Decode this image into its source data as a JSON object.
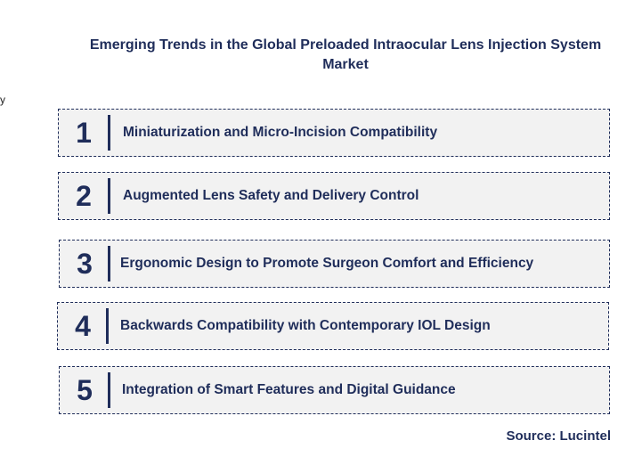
{
  "title": "Emerging Trends in the Global Preloaded Intraocular Lens Injection System Market",
  "stray_char": "y",
  "trends": [
    {
      "number": "1",
      "label": "Miniaturization and Micro-Incision Compatibility"
    },
    {
      "number": "2",
      "label": "Augmented Lens Safety and Delivery Control"
    },
    {
      "number": "3",
      "label": "Ergonomic Design to Promote Surgeon Comfort and Efficiency"
    },
    {
      "number": "4",
      "label": "Backwards Compatibility with Contemporary IOL Design"
    },
    {
      "number": "5",
      "label": "Integration of Smart Features and Digital Guidance"
    }
  ],
  "source": "Source: Lucintel",
  "colors": {
    "accent": "#1f2d5a",
    "box_fill": "#f2f2f2"
  }
}
